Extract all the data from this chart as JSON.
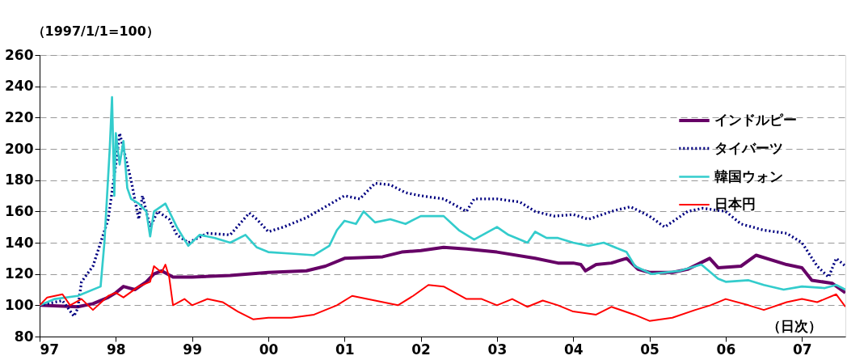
{
  "chart_data": {
    "type": "line",
    "ylabel": "（1997/1/1=100）",
    "annotations": [
      "（日次）"
    ],
    "xlim": [
      1997,
      2007.57
    ],
    "xticks": [
      {
        "value": 1997,
        "label": "97"
      },
      {
        "value": 1998,
        "label": "98"
      },
      {
        "value": 1999,
        "label": "99"
      },
      {
        "value": 2000,
        "label": "00"
      },
      {
        "value": 2001,
        "label": "01"
      },
      {
        "value": 2002,
        "label": "02"
      },
      {
        "value": 2003,
        "label": "03"
      },
      {
        "value": 2004,
        "label": "04"
      },
      {
        "value": 2005,
        "label": "05"
      },
      {
        "value": 2006,
        "label": "06"
      },
      {
        "value": 2007,
        "label": "07"
      }
    ],
    "ylim": [
      80,
      260
    ],
    "yticks": [
      80,
      100,
      120,
      140,
      160,
      180,
      200,
      220,
      240,
      260
    ],
    "grid": "y",
    "legend": "top right",
    "series": [
      {
        "name": "インドルピー",
        "color": "#660066",
        "line_style": "solid",
        "x": [
          1997.0,
          1997.5,
          1997.7,
          1997.9,
          1998.0,
          1998.1,
          1998.25,
          1998.4,
          1998.5,
          1998.6,
          1998.75,
          1999.0,
          1999.5,
          2000.0,
          2000.5,
          2000.75,
          2001.0,
          2001.5,
          2001.75,
          2002.0,
          2002.3,
          2002.6,
          2003.0,
          2003.5,
          2003.8,
          2004.0,
          2004.1,
          2004.16,
          2004.3,
          2004.5,
          2004.7,
          2004.85,
          2005.0,
          2005.3,
          2005.5,
          2005.79,
          2005.9,
          2006.2,
          2006.4,
          2006.8,
          2007.0,
          2007.13,
          2007.4,
          2007.57
        ],
        "values": [
          100,
          99,
          101,
          105,
          108,
          112,
          110,
          115,
          120,
          122,
          118,
          118,
          119,
          121,
          122,
          125,
          130,
          131,
          134,
          135,
          137,
          136,
          134,
          130,
          127,
          127,
          126,
          122,
          126,
          127,
          130,
          123,
          121,
          121,
          123,
          130,
          124,
          125,
          132,
          126,
          124,
          116,
          114,
          108
        ]
      },
      {
        "name": "タイバーツ",
        "color": "#000080",
        "line_style": "dotted",
        "x": [
          1997.0,
          1997.3,
          1997.45,
          1997.5,
          1997.55,
          1997.7,
          1997.8,
          1997.9,
          1998.0,
          1998.05,
          1998.1,
          1998.2,
          1998.3,
          1998.35,
          1998.45,
          1998.55,
          1998.7,
          1998.8,
          1998.95,
          1999.2,
          1999.5,
          1999.75,
          1999.85,
          2000.0,
          2000.2,
          2000.5,
          2000.75,
          2001.0,
          2001.2,
          2001.4,
          2001.6,
          2001.8,
          2002.0,
          2002.3,
          2002.6,
          2002.7,
          2003.0,
          2003.3,
          2003.5,
          2003.75,
          2004.0,
          2004.2,
          2004.5,
          2004.75,
          2005.0,
          2005.2,
          2005.5,
          2005.7,
          2006.0,
          2006.2,
          2006.5,
          2006.8,
          2007.0,
          2007.2,
          2007.35,
          2007.45,
          2007.57
        ],
        "values": [
          100,
          103,
          93,
          98,
          115,
          125,
          140,
          155,
          190,
          210,
          200,
          180,
          155,
          170,
          150,
          160,
          155,
          145,
          140,
          146,
          145,
          159,
          155,
          147,
          150,
          156,
          163,
          170,
          168,
          178,
          177,
          172,
          170,
          168,
          160,
          168,
          168,
          166,
          160,
          157,
          158,
          155,
          160,
          163,
          157,
          150,
          160,
          162,
          160,
          152,
          148,
          146,
          140,
          125,
          118,
          130,
          125
        ]
      },
      {
        "name": "韓国ウォン",
        "color": "#33cccc",
        "line_style": "solid",
        "x": [
          1997.0,
          1997.2,
          1997.5,
          1997.8,
          1997.85,
          1997.92,
          1997.95,
          1997.98,
          1998.0,
          1998.05,
          1998.1,
          1998.15,
          1998.2,
          1998.3,
          1998.4,
          1998.45,
          1998.5,
          1998.65,
          1998.8,
          1998.95,
          1999.1,
          1999.3,
          1999.5,
          1999.7,
          1999.85,
          2000.0,
          2000.3,
          2000.6,
          2000.8,
          2000.9,
          2001.0,
          2001.15,
          2001.25,
          2001.4,
          2001.6,
          2001.8,
          2002.0,
          2002.3,
          2002.5,
          2002.7,
          2002.85,
          2003.0,
          2003.15,
          2003.4,
          2003.5,
          2003.65,
          2003.8,
          2004.0,
          2004.2,
          2004.4,
          2004.6,
          2004.7,
          2004.81,
          2005.03,
          2005.2,
          2005.4,
          2005.68,
          2005.9,
          2006.0,
          2006.3,
          2006.5,
          2006.76,
          2007.0,
          2007.3,
          2007.45,
          2007.57
        ],
        "values": [
          100,
          104,
          106,
          112,
          140,
          200,
          233,
          170,
          210,
          190,
          205,
          175,
          168,
          165,
          160,
          144,
          160,
          165,
          150,
          138,
          145,
          143,
          140,
          145,
          137,
          134,
          133,
          132,
          138,
          148,
          154,
          152,
          160,
          153,
          155,
          152,
          157,
          157,
          148,
          142,
          146,
          150,
          145,
          140,
          147,
          143,
          143,
          140,
          138,
          140,
          136,
          134,
          125,
          120,
          121,
          122,
          126,
          117,
          115,
          116,
          113,
          110,
          112,
          111,
          113,
          110
        ]
      },
      {
        "name": "日本円",
        "color": "#ff0000",
        "line_style": "solid",
        "x": [
          1997.0,
          1997.1,
          1997.3,
          1997.4,
          1997.55,
          1997.7,
          1997.9,
          1998.0,
          1998.1,
          1998.3,
          1998.45,
          1998.5,
          1998.6,
          1998.65,
          1998.7,
          1998.75,
          1998.9,
          1999.0,
          1999.2,
          1999.4,
          1999.6,
          1999.8,
          2000.0,
          2000.3,
          2000.6,
          2000.9,
          2001.1,
          2001.4,
          2001.7,
          2001.9,
          2002.1,
          2002.3,
          2002.6,
          2002.8,
          2003.0,
          2003.2,
          2003.4,
          2003.6,
          2003.8,
          2004.0,
          2004.3,
          2004.5,
          2004.8,
          2005.0,
          2005.3,
          2005.6,
          2005.8,
          2006.0,
          2006.3,
          2006.5,
          2006.8,
          2007.0,
          2007.2,
          2007.45,
          2007.57
        ],
        "values": [
          100,
          105,
          107,
          100,
          104,
          97,
          106,
          108,
          105,
          112,
          115,
          125,
          121,
          126,
          118,
          100,
          104,
          100,
          104,
          102,
          96,
          91,
          92,
          92,
          94,
          100,
          106,
          103,
          100,
          106,
          113,
          112,
          104,
          104,
          100,
          104,
          99,
          103,
          100,
          96,
          94,
          99,
          94,
          90,
          92,
          97,
          100,
          104,
          100,
          97,
          102,
          104,
          102,
          107,
          99
        ]
      }
    ]
  }
}
